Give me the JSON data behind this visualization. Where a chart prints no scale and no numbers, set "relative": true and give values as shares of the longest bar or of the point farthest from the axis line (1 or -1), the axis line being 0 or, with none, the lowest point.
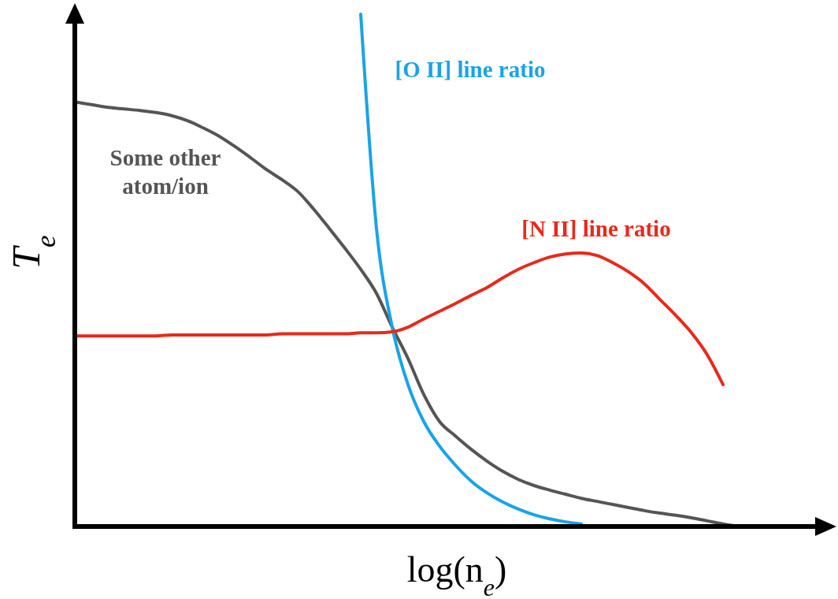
{
  "chart_data": {
    "type": "line",
    "relative": true,
    "xlabel": "log(n$_{e}$)",
    "ylabel": "T$_{e}$",
    "marker": "none",
    "line_style": "solid",
    "categories": [
      null,
      null,
      null,
      null,
      null,
      null,
      null,
      null,
      null,
      null,
      null,
      null,
      null,
      null,
      null,
      null,
      null,
      null,
      null,
      null,
      null,
      null,
      null,
      null,
      null,
      null,
      null,
      null,
      null,
      null,
      null,
      null,
      null,
      null,
      null,
      null,
      null,
      null,
      null,
      null,
      null,
      null,
      null
    ],
    "series": [
      {
        "name": "Some other atom/ion",
        "color": "#555555",
        "values": [
          0.828,
          0.823,
          0.818,
          0.815,
          0.812,
          0.808,
          0.802,
          0.792,
          0.778,
          0.762,
          0.742,
          0.72,
          0.697,
          0.677,
          0.654,
          0.62,
          0.582,
          0.543,
          0.502,
          0.455,
          0.389,
          0.328,
          0.258,
          0.205,
          0.177,
          0.151,
          0.128,
          0.108,
          0.092,
          0.08,
          0.071,
          0.063,
          0.055,
          0.049,
          0.043,
          0.037,
          0.031,
          0.026,
          0.022,
          0.017,
          0.011,
          0.005,
          0
        ]
      },
      {
        "name": "[O II] line ratio",
        "color": "#1aa3e8",
        "values": [
          null,
          null,
          null,
          null,
          null,
          null,
          null,
          null,
          null,
          null,
          null,
          null,
          null,
          null,
          null,
          null,
          null,
          null,
          1.0,
          0.582,
          0.389,
          0.277,
          0.205,
          0.157,
          0.12,
          0.089,
          0.066,
          0.048,
          0.034,
          0.023,
          0.015,
          0.009,
          0.005,
          null,
          null,
          null,
          null,
          null,
          null,
          null,
          null,
          null,
          null
        ]
      },
      {
        "name": "[N II] line ratio",
        "color": "#e8291c",
        "values": [
          0.372,
          0.372,
          0.372,
          0.372,
          0.372,
          0.372,
          0.374,
          0.374,
          0.374,
          0.374,
          0.374,
          0.374,
          0.374,
          0.376,
          0.376,
          0.376,
          0.376,
          0.376,
          0.378,
          0.378,
          0.38,
          0.389,
          0.405,
          0.42,
          0.435,
          0.451,
          0.466,
          0.485,
          0.502,
          0.515,
          0.526,
          0.532,
          0.534,
          0.529,
          0.515,
          0.497,
          0.474,
          0.443,
          0.412,
          0.378,
          0.335,
          0.277,
          null
        ]
      }
    ]
  }
}
